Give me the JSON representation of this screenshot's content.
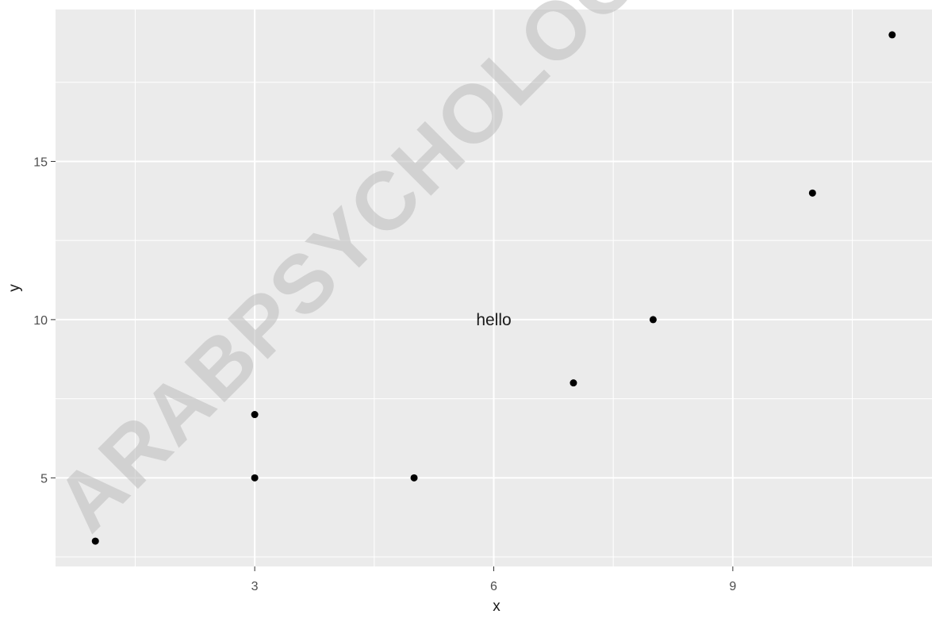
{
  "chart_data": {
    "type": "scatter",
    "x": [
      1,
      3,
      3,
      5,
      7,
      8,
      10,
      11
    ],
    "y": [
      3,
      5,
      7,
      5,
      8,
      10,
      14,
      19
    ],
    "xlabel": "x",
    "ylabel": "y",
    "xlim": [
      0.5,
      11.5
    ],
    "ylim": [
      2.2,
      19.8
    ],
    "x_ticks": [
      3,
      6,
      9
    ],
    "x_tick_labels": [
      "3",
      "6",
      "9"
    ],
    "y_ticks": [
      5,
      10,
      15
    ],
    "y_tick_labels": [
      "5",
      "10",
      "15"
    ],
    "x_minor_gridlines": [
      1.5,
      4.5,
      7.5,
      10.5
    ],
    "y_minor_gridlines": [
      2.5,
      7.5,
      12.5,
      17.5
    ],
    "grid": true,
    "annotations": [
      {
        "text": "hello",
        "x": 6,
        "y": 10
      }
    ],
    "colors": {
      "panel_background": "#ebebeb",
      "gridline": "#ffffff",
      "point": "#000000",
      "tick": "#333333"
    }
  },
  "watermark": "ARABPSYCHOLOGY"
}
